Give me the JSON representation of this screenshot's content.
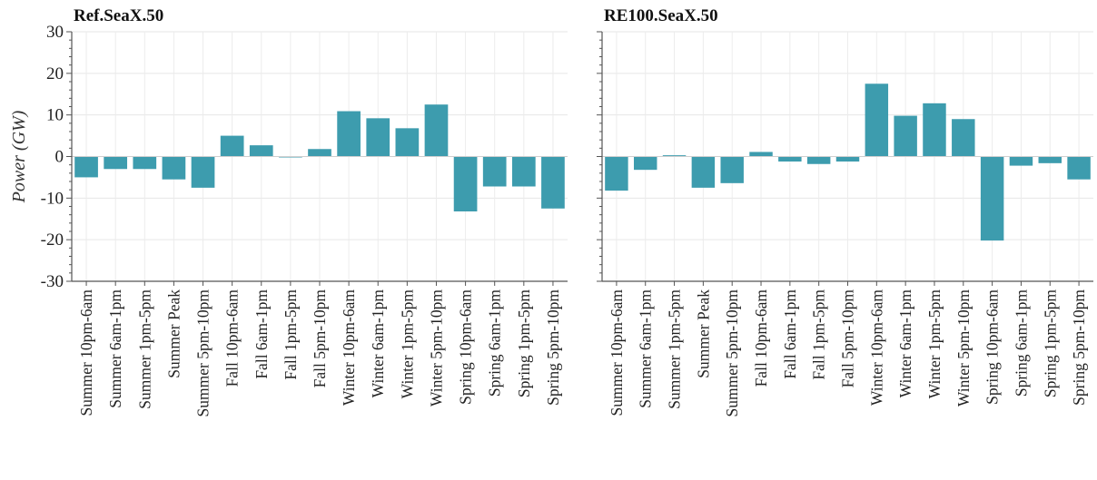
{
  "chart_data": [
    {
      "type": "bar",
      "title": "Ref.SeaX.50",
      "ylabel": "Power (GW)",
      "xlabel": "",
      "ylim": [
        -30,
        30
      ],
      "yticks": [
        -30,
        -20,
        -10,
        0,
        10,
        20,
        30
      ],
      "grid": true,
      "bar_color": "#3d9cae",
      "categories": [
        "Summer 10pm-6am",
        "Summer 6am-1pm",
        "Summer 1pm-5pm",
        "Summer Peak",
        "Summer 5pm-10pm",
        "Fall 10pm-6am",
        "Fall 6am-1pm",
        "Fall 1pm-5pm",
        "Fall 5pm-10pm",
        "Winter 10pm-6am",
        "Winter 6am-1pm",
        "Winter 1pm-5pm",
        "Winter 5pm-10pm",
        "Spring 10pm-6am",
        "Spring 6am-1pm",
        "Spring 1pm-5pm",
        "Spring 5pm-10pm"
      ],
      "values": [
        -5,
        -3,
        -3,
        -5.5,
        -7.5,
        5,
        2.7,
        -0.2,
        1.8,
        10.9,
        9.2,
        6.8,
        12.5,
        -13.2,
        -7.2,
        -7.2,
        -12.5
      ]
    },
    {
      "type": "bar",
      "title": "RE100.SeaX.50",
      "ylabel": "",
      "xlabel": "",
      "ylim": [
        -30,
        30
      ],
      "yticks": [
        -30,
        -20,
        -10,
        0,
        10,
        20,
        30
      ],
      "grid": true,
      "bar_color": "#3d9cae",
      "categories": [
        "Summer 10pm-6am",
        "Summer 6am-1pm",
        "Summer 1pm-5pm",
        "Summer Peak",
        "Summer 5pm-10pm",
        "Fall 10pm-6am",
        "Fall 6am-1pm",
        "Fall 1pm-5pm",
        "Fall 5pm-10pm",
        "Winter 10pm-6am",
        "Winter 6am-1pm",
        "Winter 1pm-5pm",
        "Winter 5pm-10pm",
        "Spring 10pm-6am",
        "Spring 6am-1pm",
        "Spring 1pm-5pm",
        "Spring 5pm-10pm"
      ],
      "values": [
        -8.2,
        -3.2,
        0.3,
        -7.5,
        -6.4,
        1.1,
        -1.2,
        -1.8,
        -1.2,
        17.5,
        9.8,
        12.8,
        9,
        -20.2,
        -2.2,
        -1.6,
        -5.5
      ]
    }
  ]
}
